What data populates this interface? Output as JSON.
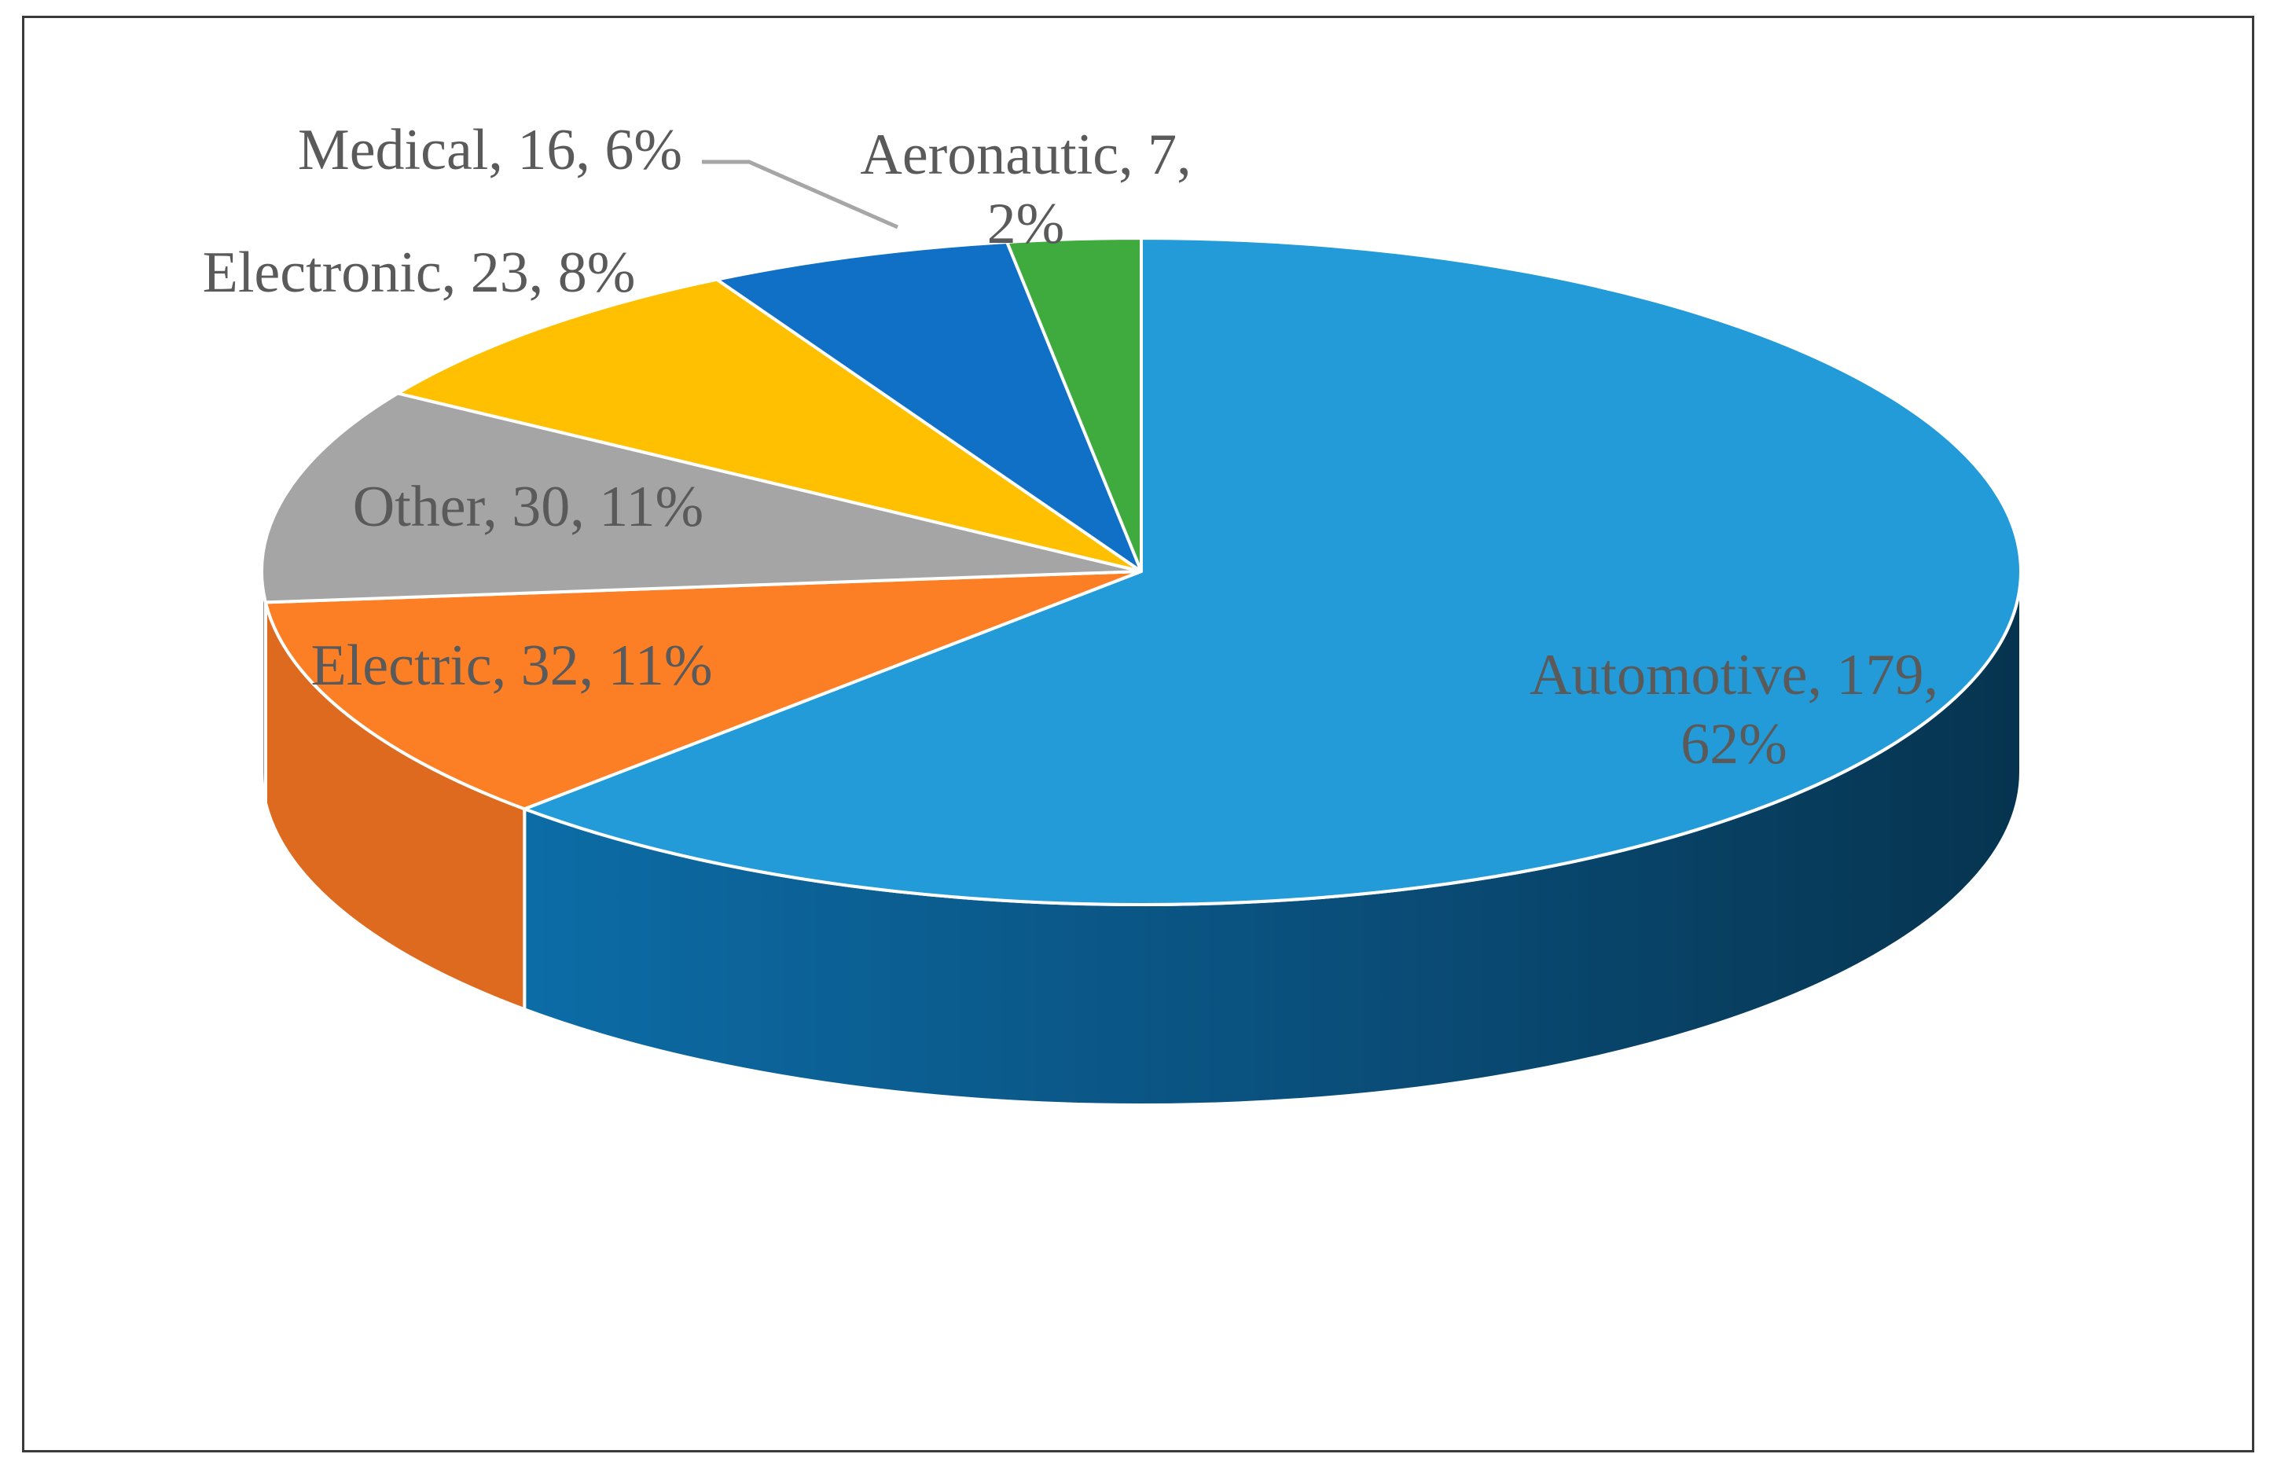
{
  "chart_data": {
    "type": "pie",
    "style": "3d",
    "legend": "none",
    "slices": [
      {
        "name": "Automotive",
        "value": 179,
        "percent": "62%",
        "color": "#229BD8",
        "side_color": "#0F5F8A"
      },
      {
        "name": "Electric",
        "value": 32,
        "percent": "11%",
        "color": "#FD7F25",
        "side_color": "#DD6A1E"
      },
      {
        "name": "Other",
        "value": 30,
        "percent": "11%",
        "color": "#A5A5A5",
        "side_color": "#808080"
      },
      {
        "name": "Electronic",
        "value": 23,
        "percent": "8%",
        "color": "#FEC000",
        "side_color": "#C89800"
      },
      {
        "name": "Medical",
        "value": 16,
        "percent": "6%",
        "color": "#0F70C5",
        "side_color": "#0A4F8C"
      },
      {
        "name": "Aeronautic",
        "value": 7,
        "percent": "2%",
        "color": "#3FAB3E",
        "side_color": "#2E7F2D"
      }
    ],
    "data_labels": [
      {
        "slice": "Automotive",
        "lines": [
          "Automotive, 179,",
          "62%"
        ]
      },
      {
        "slice": "Electric",
        "lines": [
          "Electric, 32, 11%"
        ]
      },
      {
        "slice": "Other",
        "lines": [
          "Other, 30, 11%"
        ]
      },
      {
        "slice": "Electronic",
        "lines": [
          "Electronic, 23, 8%"
        ]
      },
      {
        "slice": "Medical",
        "lines": [
          "Medical, 16, 6%"
        ]
      },
      {
        "slice": "Aeronautic",
        "lines": [
          "Aeronautic, 7,",
          "2%"
        ]
      }
    ]
  }
}
